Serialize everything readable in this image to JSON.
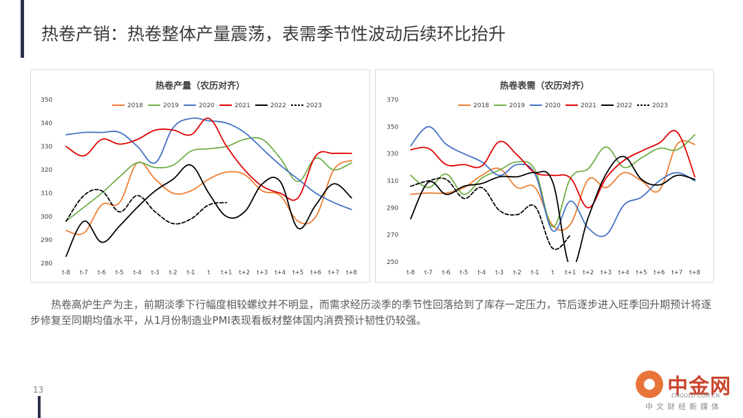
{
  "slide": {
    "title": "热卷产销：热卷整体产量震荡，表需季节性波动后续环比抬升",
    "paragraph": "热卷高炉生产为主，前期淡季下行幅度相较螺纹并不明显，而需求经历淡季的季节性回落给到了库存一定压力，节后逐步进入旺季回升期预计将逐步修复至同期均值水平，从1月份制造业PMI表现看板材整体国内消费预计韧性仍较强。",
    "page_number": "13",
    "watermark": {
      "name": "中金网",
      "url": "CNGOLD.COM.CN",
      "subtitle": "中文财经新媒体"
    }
  },
  "chart_data": [
    {
      "type": "line",
      "title": "热卷产量（农历对齐）",
      "categories": [
        "t-8",
        "t-7",
        "t-6",
        "t-5",
        "t-4",
        "t-3",
        "t-2",
        "t-1",
        "t",
        "t+1",
        "t+2",
        "t+3",
        "t+4",
        "t+5",
        "t+6",
        "t+7",
        "t+8"
      ],
      "ylim": [
        280,
        350
      ],
      "yticks": [
        280,
        290,
        300,
        310,
        320,
        330,
        340,
        350
      ],
      "legend_position": "top",
      "series": [
        {
          "name": "2018",
          "color": "#ed7d31",
          "dash": false,
          "values": [
            294,
            293,
            305,
            306,
            323,
            316,
            310,
            311,
            316,
            319,
            318,
            311,
            309,
            298,
            300,
            320,
            324
          ]
        },
        {
          "name": "2019",
          "color": "#70ad47",
          "dash": false,
          "values": [
            298,
            304,
            310,
            317,
            323,
            321,
            322,
            328,
            329,
            330,
            333,
            333,
            325,
            315,
            325,
            320,
            323
          ]
        },
        {
          "name": "2020",
          "color": "#4472c4",
          "dash": false,
          "values": [
            335,
            336,
            336,
            336,
            330,
            323,
            338,
            342,
            341,
            340,
            336,
            329,
            322,
            316,
            310,
            306,
            303
          ]
        },
        {
          "name": "2021",
          "color": "#e00000",
          "dash": false,
          "values": [
            330,
            326,
            333,
            331,
            333,
            337,
            337,
            335,
            342,
            330,
            320,
            313,
            310,
            308,
            326,
            327,
            327
          ]
        },
        {
          "name": "2022",
          "color": "#000000",
          "dash": false,
          "values": [
            283,
            298,
            289,
            296,
            304,
            311,
            316,
            322,
            310,
            300,
            302,
            314,
            315,
            295,
            305,
            314,
            308
          ]
        },
        {
          "name": "2023",
          "color": "#000000",
          "dash": true,
          "values": [
            298,
            309,
            311,
            302,
            309,
            302,
            297,
            299,
            305,
            306,
            null,
            null,
            null,
            null,
            null,
            null,
            null
          ]
        }
      ]
    },
    {
      "type": "line",
      "title": "热卷表需（农历对齐）",
      "categories": [
        "t-8",
        "t-7",
        "t-6",
        "t-5",
        "t-4",
        "t-3",
        "t-2",
        "t-1",
        "t",
        "t+1",
        "t+2",
        "t+3",
        "t+4",
        "t+5",
        "t+6",
        "t+7",
        "t+8"
      ],
      "ylim": [
        250,
        370
      ],
      "yticks": [
        250,
        270,
        290,
        310,
        330,
        350,
        370
      ],
      "legend_position": "top",
      "series": [
        {
          "name": "2018",
          "color": "#ed7d31",
          "dash": false,
          "values": [
            300,
            301,
            301,
            305,
            314,
            319,
            305,
            305,
            277,
            278,
            311,
            305,
            316,
            310,
            303,
            337,
            337
          ]
        },
        {
          "name": "2019",
          "color": "#70ad47",
          "dash": false,
          "values": [
            314,
            305,
            315,
            300,
            312,
            318,
            324,
            318,
            276,
            312,
            319,
            335,
            320,
            327,
            334,
            333,
            344
          ]
        },
        {
          "name": "2020",
          "color": "#4472c4",
          "dash": false,
          "values": [
            336,
            350,
            337,
            330,
            324,
            314,
            322,
            315,
            273,
            295,
            275,
            270,
            292,
            298,
            310,
            316,
            310
          ]
        },
        {
          "name": "2021",
          "color": "#e00000",
          "dash": false,
          "values": [
            333,
            334,
            322,
            322,
            321,
            339,
            329,
            316,
            314,
            312,
            290,
            312,
            325,
            332,
            338,
            346,
            313
          ]
        },
        {
          "name": "2022",
          "color": "#000000",
          "dash": false,
          "values": [
            282,
            309,
            300,
            306,
            308,
            313,
            313,
            316,
            309,
            246,
            283,
            315,
            328,
            311,
            307,
            314,
            311
          ]
        },
        {
          "name": "2023",
          "color": "#000000",
          "dash": true,
          "values": [
            306,
            310,
            311,
            297,
            305,
            288,
            285,
            291,
            260,
            270,
            null,
            null,
            null,
            null,
            null,
            null,
            null
          ]
        }
      ]
    }
  ]
}
